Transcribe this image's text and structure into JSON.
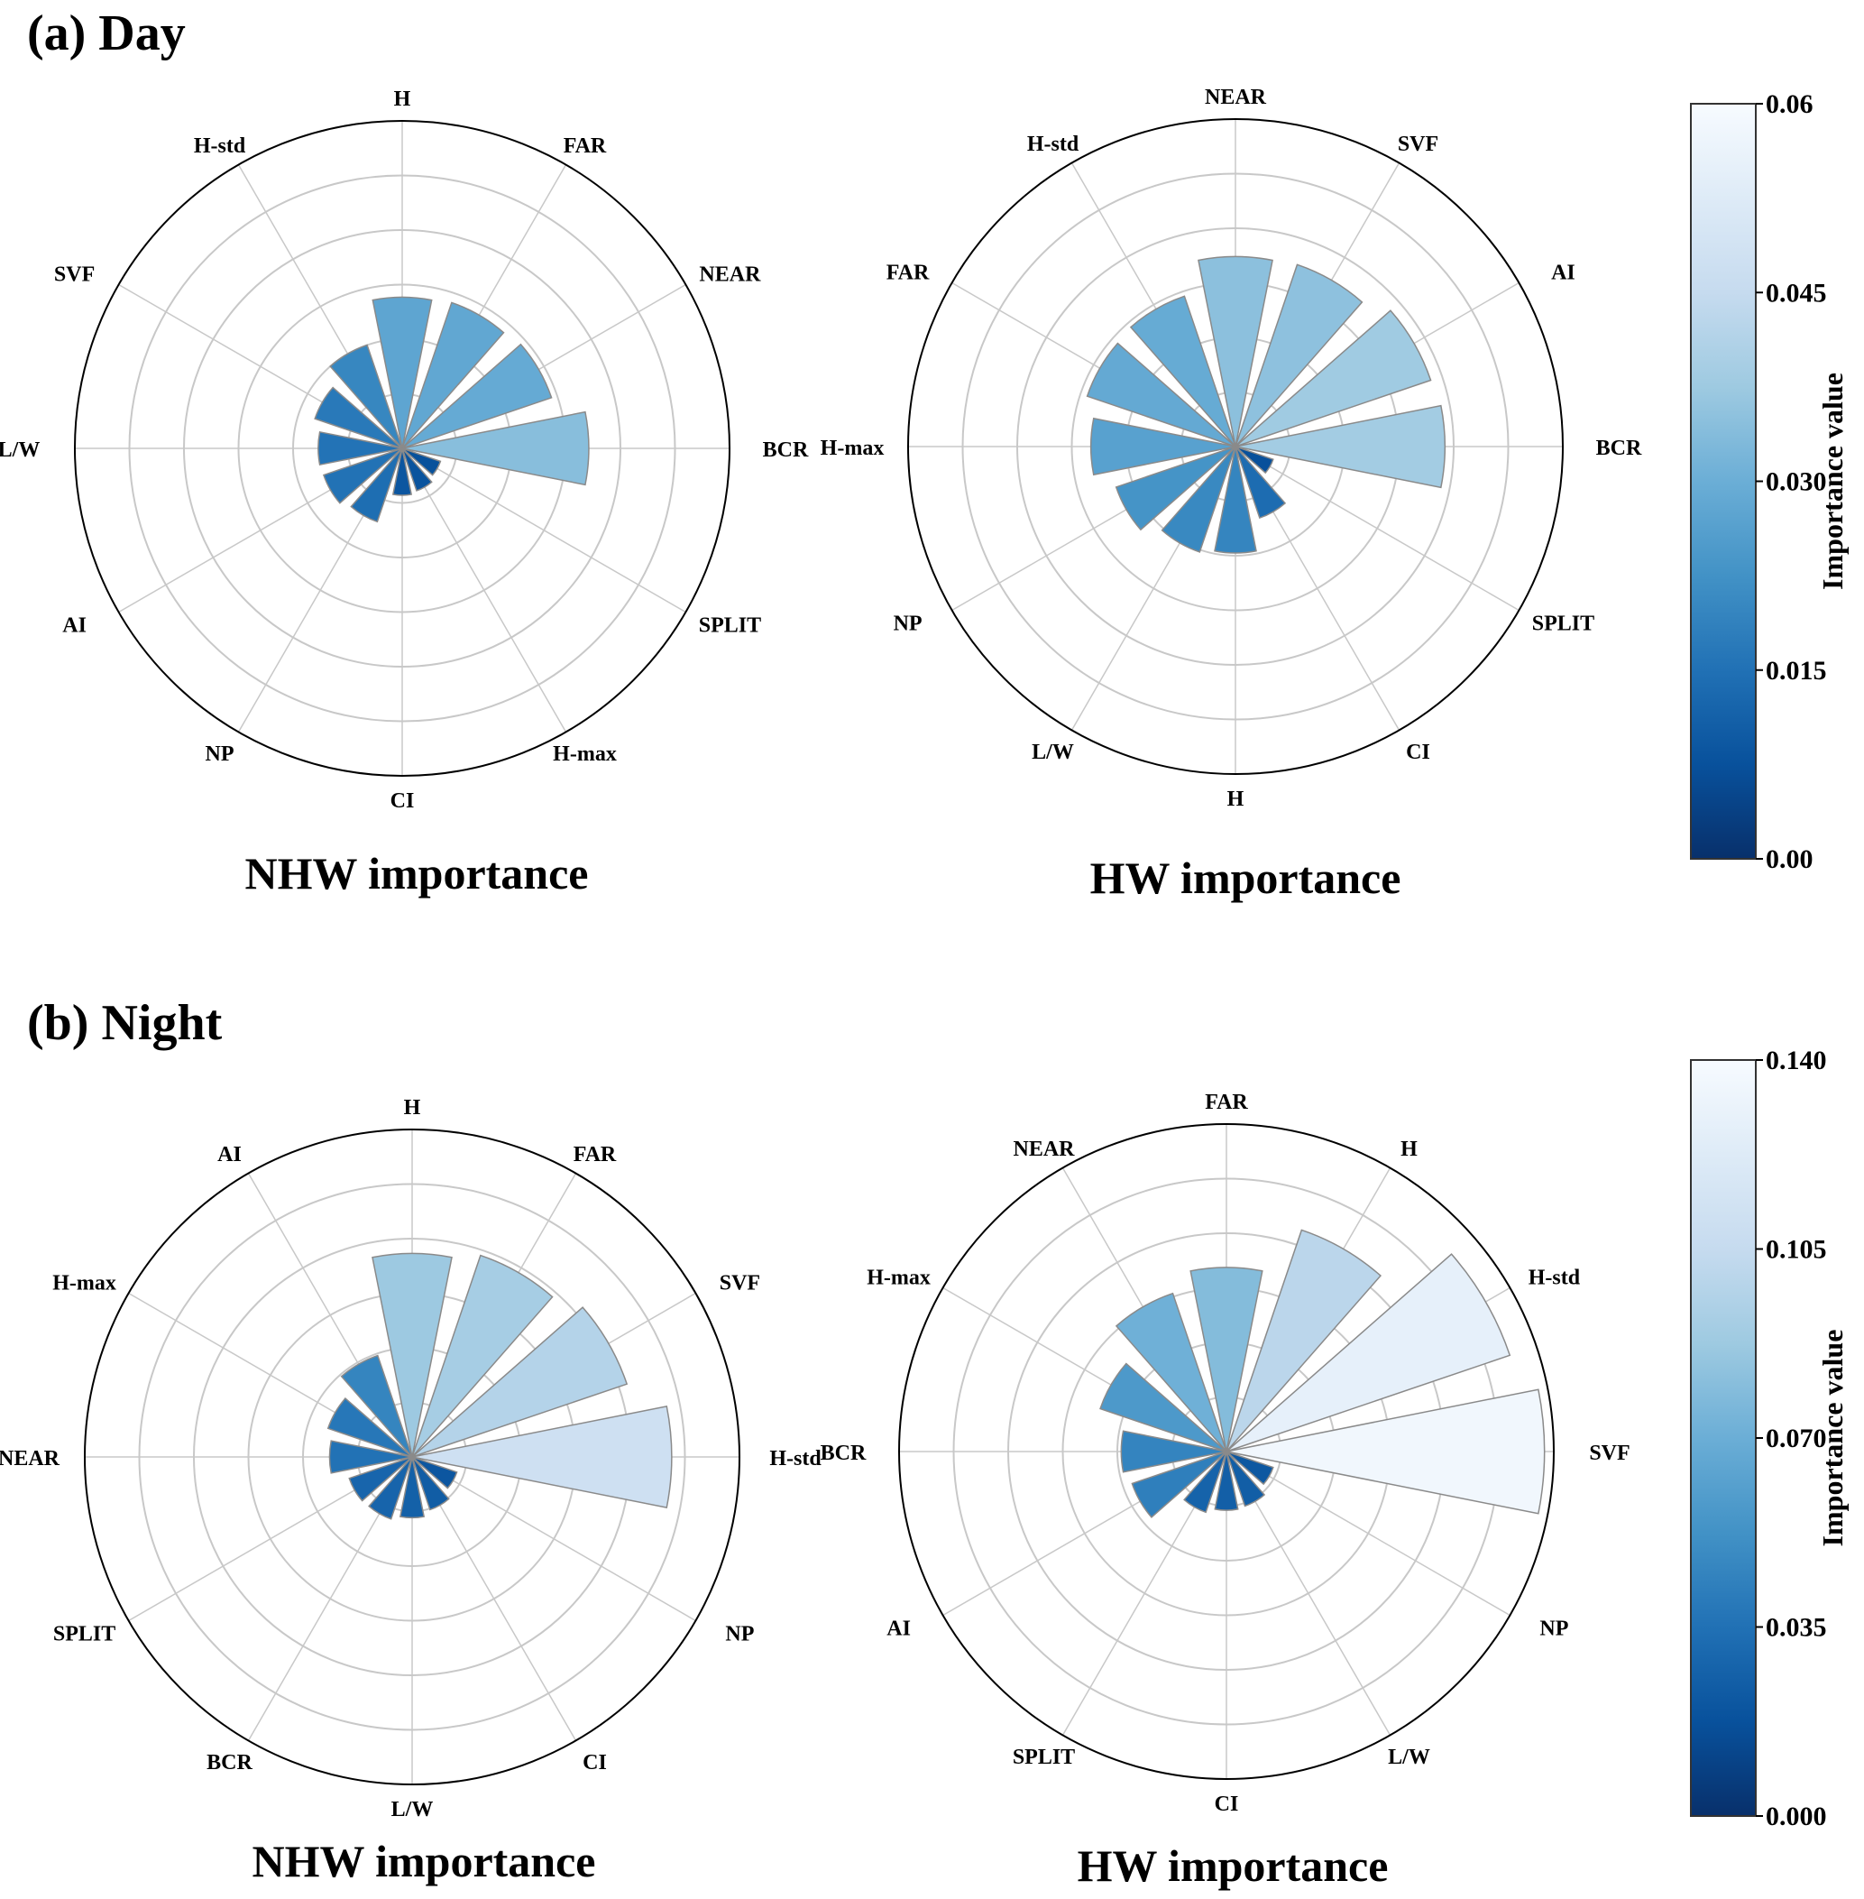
{
  "panels": [
    {
      "title": "(a) Day",
      "colorbar": {
        "label": "Importance value",
        "ticks": [
          "0.00",
          "0.015",
          "0.030",
          "0.045",
          "0.06"
        ],
        "range": [
          0,
          0.06
        ]
      }
    },
    {
      "title": "(b) Night",
      "colorbar": {
        "label": "Importance value",
        "ticks": [
          "0.000",
          "0.035",
          "0.070",
          "0.105",
          "0.140"
        ],
        "range": [
          0,
          0.14
        ]
      }
    }
  ],
  "chart_data": [
    {
      "type": "polar-bar",
      "panel": "(a) Day",
      "title": "NHW importance",
      "rlim": [
        0,
        0.06
      ],
      "grid": true,
      "colormap": "Blues_r",
      "categories": [
        "BCR",
        "NEAR",
        "FAR",
        "H",
        "H-std",
        "SVF",
        "L/W",
        "AI",
        "NP",
        "CI",
        "H-max",
        "SPLIT"
      ],
      "values": [
        0.0342,
        0.0289,
        0.0282,
        0.0277,
        0.02,
        0.0169,
        0.0154,
        0.0152,
        0.0142,
        0.0086,
        0.0082,
        0.0074
      ]
    },
    {
      "type": "polar-bar",
      "panel": "(a) Day",
      "title": "HW importance",
      "rlim": [
        0,
        0.06
      ],
      "grid": true,
      "colormap": "Blues_r",
      "categories": [
        "BCR",
        "AI",
        "SVF",
        "NEAR",
        "H-std",
        "FAR",
        "H-max",
        "NP",
        "L/W",
        "H",
        "CI",
        "SPLIT"
      ],
      "values": [
        0.0384,
        0.0378,
        0.0352,
        0.0348,
        0.0291,
        0.0287,
        0.0265,
        0.0231,
        0.0204,
        0.0195,
        0.0138,
        0.0073
      ]
    },
    {
      "type": "polar-bar",
      "panel": "(b) Night",
      "title": "NHW importance",
      "rlim": [
        0,
        0.14
      ],
      "grid": true,
      "colormap": "Blues_r",
      "categories": [
        "H-std",
        "SVF",
        "FAR",
        "H",
        "AI",
        "H-max",
        "NEAR",
        "SPLIT",
        "BCR",
        "L/W",
        "CI",
        "NP"
      ],
      "values": [
        0.111,
        0.097,
        0.091,
        0.087,
        0.0458,
        0.038,
        0.0353,
        0.0284,
        0.028,
        0.026,
        0.0238,
        0.0202
      ]
    },
    {
      "type": "polar-bar",
      "panel": "(b) Night",
      "title": "HW importance",
      "rlim": [
        0,
        0.14
      ],
      "grid": true,
      "colormap": "Blues_r",
      "categories": [
        "SVF",
        "H-std",
        "H",
        "FAR",
        "NEAR",
        "H-max",
        "BCR",
        "AI",
        "SPLIT",
        "CI",
        "L/W",
        "NP"
      ],
      "values": [
        0.136,
        0.128,
        0.1,
        0.0787,
        0.0714,
        0.057,
        0.045,
        0.0426,
        0.0274,
        0.0251,
        0.0246,
        0.0211
      ]
    }
  ]
}
